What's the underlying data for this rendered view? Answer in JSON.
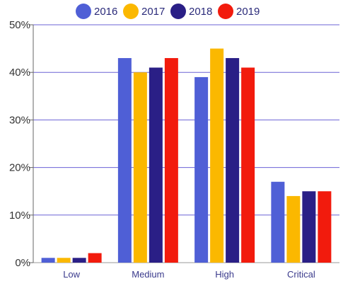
{
  "chart_data": {
    "type": "bar",
    "categories": [
      "Low",
      "Medium",
      "High",
      "Critical"
    ],
    "series": [
      {
        "name": "2016",
        "color": "#4f5fd6",
        "values": [
          1,
          43,
          39,
          17
        ]
      },
      {
        "name": "2017",
        "color": "#fbb800",
        "values": [
          1,
          40,
          45,
          14
        ]
      },
      {
        "name": "2018",
        "color": "#2a1f86",
        "values": [
          1,
          41,
          43,
          15
        ]
      },
      {
        "name": "2019",
        "color": "#f21b0d",
        "values": [
          2,
          43,
          41,
          15
        ]
      }
    ],
    "y_ticks": [
      "0%",
      "10%",
      "20%",
      "30%",
      "40%",
      "50%"
    ],
    "ylim": [
      0,
      50
    ],
    "y_unit": "%",
    "grid": true,
    "grid_color": "#6b63d6",
    "legend": "top"
  }
}
